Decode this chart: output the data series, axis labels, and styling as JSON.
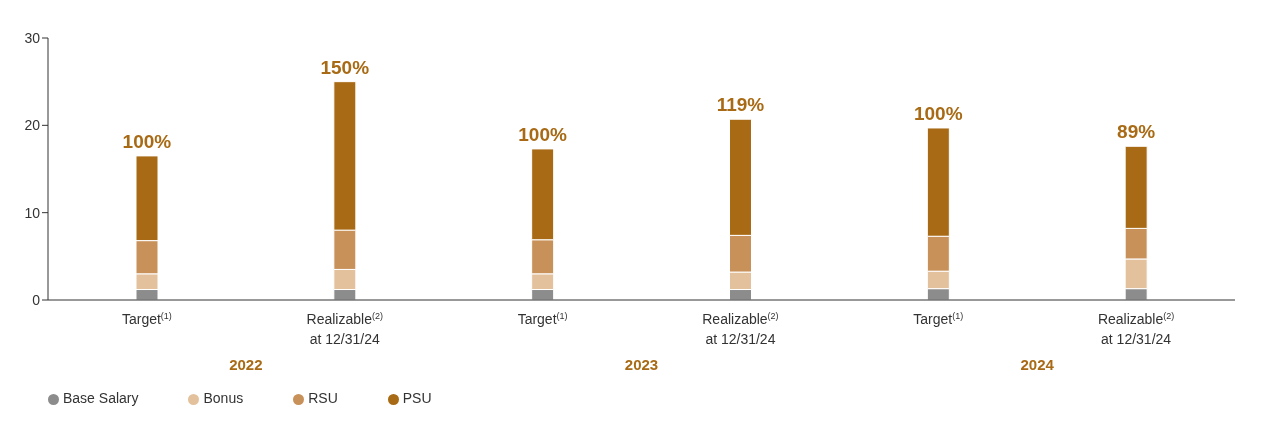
{
  "chart_data": {
    "type": "bar",
    "stacked": true,
    "categories": [
      "Target$^{(1)}$",
      "Realizable$^{(2)}$\nat 12/31/24",
      "Target$^{(1)}$",
      "Realizable$^{(2)}$\nat 12/31/24",
      "Target$^{(1)}$",
      "Realizable$^{(2)}$\nat 12/31/24"
    ],
    "series": [
      {
        "name": "Base Salary",
        "color": "#8c8c8c",
        "values": [
          1.2,
          1.2,
          1.2,
          1.2,
          1.3,
          1.3
        ]
      },
      {
        "name": "Bonus",
        "color": "#e3c19c",
        "values": [
          1.8,
          2.3,
          1.8,
          2.0,
          2.0,
          3.4
        ]
      },
      {
        "name": "RSU",
        "color": "#c8915a",
        "values": [
          3.8,
          4.5,
          3.9,
          4.2,
          4.0,
          3.5
        ]
      },
      {
        "name": "PSU",
        "color": "#a86a14",
        "values": [
          9.7,
          17.0,
          10.4,
          13.3,
          12.4,
          9.4
        ]
      }
    ],
    "annotations": [
      "100%",
      "150%",
      "100%",
      "119%",
      "100%",
      "89%",
      "2022",
      "2023",
      "2024"
    ],
    "ylim": [
      0,
      30
    ],
    "yticks": [
      0,
      10,
      20,
      30
    ],
    "grid": false,
    "legend": "bottom left"
  }
}
